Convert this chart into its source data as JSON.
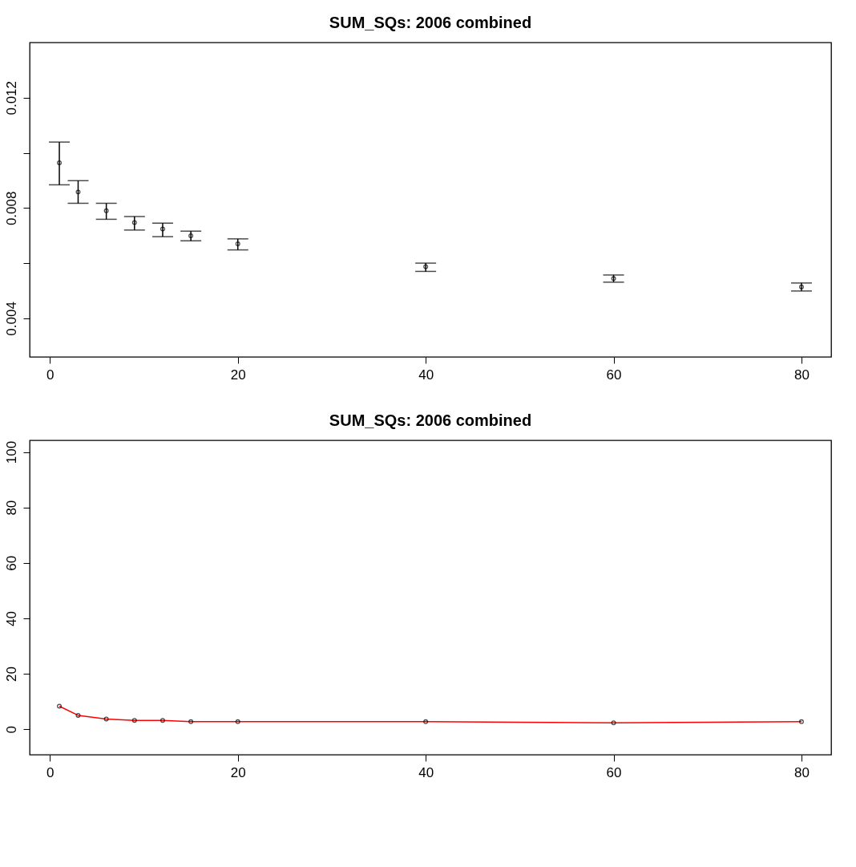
{
  "chart_data": [
    {
      "type": "scatter",
      "title": "SUM_SQs: 2006 combined",
      "x": [
        1,
        3,
        6,
        9,
        12,
        15,
        20,
        40,
        60,
        80
      ],
      "values": [
        0.00964,
        0.00858,
        0.0079,
        0.00747,
        0.00724,
        0.00699,
        0.0067,
        0.00587,
        0.00544,
        0.00514
      ],
      "errors": [
        [
          0.00884,
          0.01039
        ],
        [
          0.00817,
          0.00899
        ],
        [
          0.00759,
          0.00817
        ],
        [
          0.0072,
          0.00769
        ],
        [
          0.00696,
          0.00745
        ],
        [
          0.00681,
          0.00716
        ],
        [
          0.00648,
          0.00688
        ],
        [
          0.0057,
          0.006
        ],
        [
          0.00531,
          0.00557
        ],
        [
          0.00499,
          0.00528
        ]
      ],
      "color": "#000000",
      "marker": "circle",
      "xlim": [
        -2.16,
        83.16
      ],
      "xticks": [
        0,
        20,
        40,
        60,
        80
      ],
      "ylim": [
        0.0026,
        0.014
      ],
      "yticks": [
        0.004,
        {
          "value": 0.006,
          "label": null
        },
        0.008,
        {
          "value": 0.01,
          "label": null
        },
        0.012
      ],
      "grid": false
    },
    {
      "type": "line",
      "title": "SUM_SQs: 2006 combined",
      "x": [
        1,
        3,
        6,
        9,
        12,
        15,
        20,
        40,
        60,
        80
      ],
      "series": [
        {
          "color": "#ff0000",
          "values": [
            8.3,
            5.0,
            3.7,
            3.2,
            3.2,
            2.7,
            2.7,
            2.7,
            2.3,
            2.7
          ]
        }
      ],
      "marker": "circle",
      "line_style": "solid",
      "xlim": [
        -2.16,
        83.16
      ],
      "xticks": [
        0,
        20,
        40,
        60,
        80
      ],
      "ylim": [
        -9.2,
        104.2
      ],
      "yticks": [
        0,
        20,
        40,
        60,
        80,
        100
      ],
      "grid": false
    }
  ]
}
